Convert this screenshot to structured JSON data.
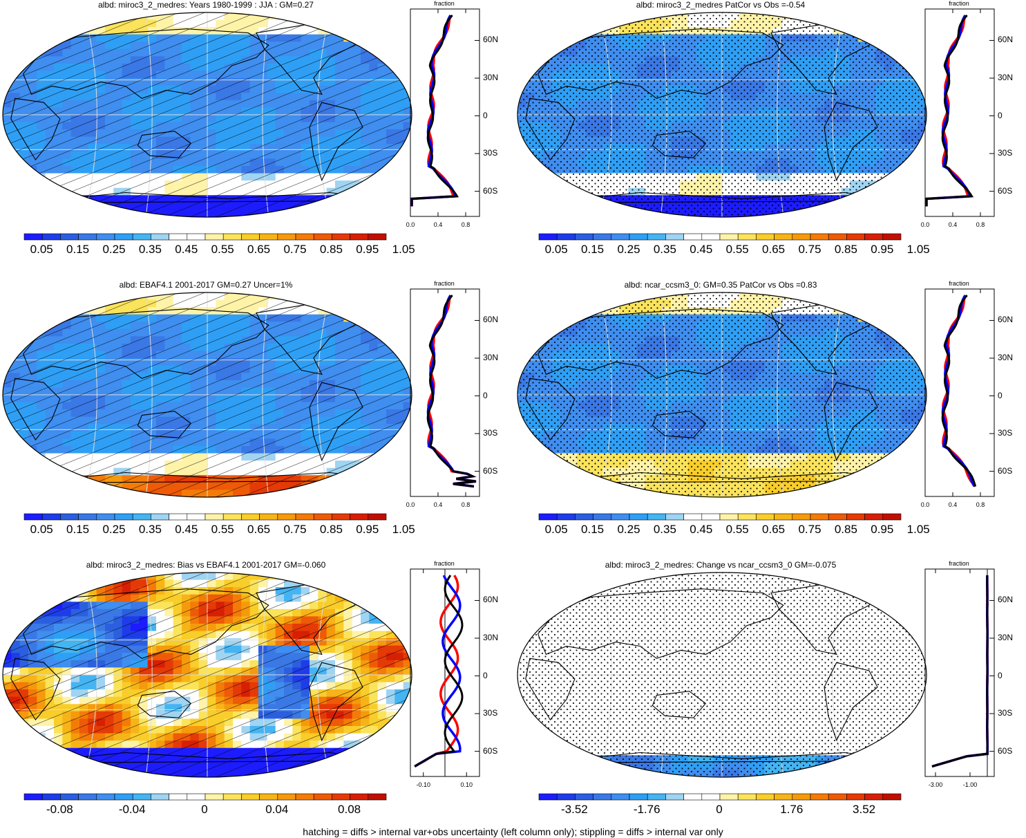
{
  "footer": "hatching = diffs > internal var+obs uncertainty (left column only); stippling = diffs > internal var only",
  "zonal_header": "fraction",
  "lat_ticks": [
    "60N",
    "30N",
    "0",
    "30S",
    "60S"
  ],
  "colors": {
    "absolute_scale": [
      "#1c1cff",
      "#1e3ce8",
      "#2b5fe0",
      "#3a78e6",
      "#3f8ef0",
      "#2f9ff5",
      "#45b4f2",
      "#9fd4f2",
      "#ffffff",
      "#ffffff",
      "#fff3a8",
      "#fbe35b",
      "#f9cd2a",
      "#f7b418",
      "#f59a0c",
      "#f47b08",
      "#ee5a07",
      "#e53a06",
      "#d71f05",
      "#c00f00"
    ],
    "diff_scale": [
      "#1c1cff",
      "#1e3ce8",
      "#2b5fe0",
      "#3a78e6",
      "#3f8ef0",
      "#2f9ff5",
      "#45b4f2",
      "#9fd4f2",
      "#ffffff",
      "#ffffff",
      "#fff3a8",
      "#fbe35b",
      "#f9cd2a",
      "#f7b418",
      "#f59a0c",
      "#f47b08",
      "#ee5a07",
      "#e53a06",
      "#d71f05",
      "#c00f00"
    ],
    "line_model": "#ff0000",
    "line_obs": "#0000ff",
    "line_mean": "#000000"
  },
  "chart_data": [
    {
      "type": "heatmap",
      "title": "albd: miroc3_2_medres: Years 1980-1999 : JJA : GM=0.27",
      "overlay": "hatching",
      "field": "absolute",
      "colorbar_labels": [
        "0.05",
        "0.15",
        "0.25",
        "0.35",
        "0.45",
        "0.55",
        "0.65",
        "0.75",
        "0.85",
        "0.95",
        "1.05"
      ],
      "zonal_xticks": [
        "0.0",
        "0.4",
        "0.8"
      ],
      "zonal_xlim": [
        0,
        1.0
      ]
    },
    {
      "type": "heatmap",
      "title": "albd: miroc3_2_medres PatCor vs Obs =-0.54",
      "overlay": "stippling",
      "field": "absolute",
      "colorbar_labels": [
        "0.05",
        "0.15",
        "0.25",
        "0.35",
        "0.45",
        "0.55",
        "0.65",
        "0.75",
        "0.85",
        "0.95",
        "1.05"
      ],
      "zonal_xticks": [
        "0.0",
        "0.4",
        "0.8"
      ],
      "zonal_xlim": [
        0,
        1.0
      ]
    },
    {
      "type": "heatmap",
      "title": "albd: EBAF4.1 2001-2017 GM=0.27 Uncer=1%",
      "overlay": "hatching",
      "field": "absolute_south_high",
      "colorbar_labels": [
        "0.05",
        "0.15",
        "0.25",
        "0.35",
        "0.45",
        "0.55",
        "0.65",
        "0.75",
        "0.85",
        "0.95",
        "1.05"
      ],
      "zonal_xticks": [
        "0.0",
        "0.4",
        "0.8"
      ],
      "zonal_xlim": [
        0,
        1.0
      ]
    },
    {
      "type": "heatmap",
      "title": "albd: ncar_ccsm3_0: GM=0.35 PatCor vs Obs =0.83",
      "overlay": "stippling",
      "field": "absolute_south_yellow",
      "colorbar_labels": [
        "0.05",
        "0.15",
        "0.25",
        "0.35",
        "0.45",
        "0.55",
        "0.65",
        "0.75",
        "0.85",
        "0.95",
        "1.05"
      ],
      "zonal_xticks": [
        "0.0",
        "0.4",
        "0.8"
      ],
      "zonal_xlim": [
        0,
        1.0
      ]
    },
    {
      "type": "heatmap",
      "title": "albd: miroc3_2_medres: Bias vs EBAF4.1 2001-2017 GM=-0.060",
      "overlay": "hatching",
      "field": "bias",
      "colorbar_labels": [
        "-0.08",
        "-0.04",
        "0",
        "0.04",
        "0.08"
      ],
      "zonal_xticks": [
        "-0.10",
        "0.10"
      ],
      "zonal_xlim": [
        -0.16,
        0.16
      ]
    },
    {
      "type": "heatmap",
      "title": "albd: miroc3_2_medres: Change vs ncar_ccsm3_0 GM=-0.075",
      "overlay": "stippling",
      "field": "change",
      "colorbar_labels": [
        "-3.52",
        "-1.76",
        "0",
        "1.76",
        "3.52"
      ],
      "zonal_xticks": [
        "-3.00",
        "-1.00"
      ],
      "zonal_xlim": [
        -3.6,
        0.4
      ]
    }
  ]
}
